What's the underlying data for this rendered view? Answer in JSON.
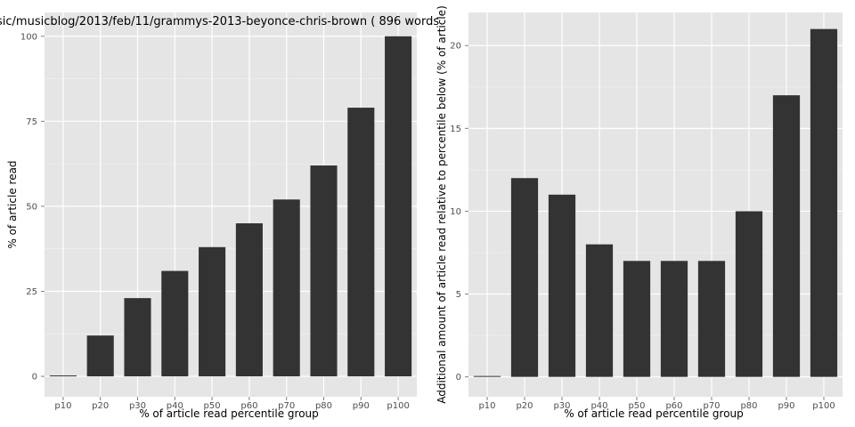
{
  "chart_data": [
    {
      "type": "bar",
      "title": "sic/musicblog/2013/feb/11/grammys-2013-beyonce-chris-brown ( 896 words",
      "xlabel": "% of article read percentile group",
      "ylabel": "% of article read",
      "categories": [
        "p10",
        "p20",
        "p30",
        "p40",
        "p50",
        "p60",
        "p70",
        "p80",
        "p90",
        "p100"
      ],
      "values": [
        0,
        12,
        23,
        31,
        38,
        45,
        52,
        62,
        79,
        100
      ],
      "ylim": [
        -6,
        107
      ],
      "yticks": [
        0,
        25,
        50,
        75,
        100
      ],
      "grid": true,
      "panel_background": "#e5e5e5",
      "bar_color": "#333333"
    },
    {
      "type": "bar",
      "title": "",
      "xlabel": "% of article read percentile group",
      "ylabel": "Additional amount of article read relative to percentile below (% of article)",
      "categories": [
        "p10",
        "p20",
        "p30",
        "p40",
        "p50",
        "p60",
        "p70",
        "p80",
        "p90",
        "p100"
      ],
      "values": [
        0,
        12,
        11,
        8,
        7,
        7,
        7,
        10,
        17,
        21
      ],
      "ylim": [
        -1.2,
        22
      ],
      "yticks": [
        0,
        5,
        10,
        15,
        20
      ],
      "grid": true,
      "panel_background": "#e5e5e5",
      "bar_color": "#333333"
    }
  ]
}
